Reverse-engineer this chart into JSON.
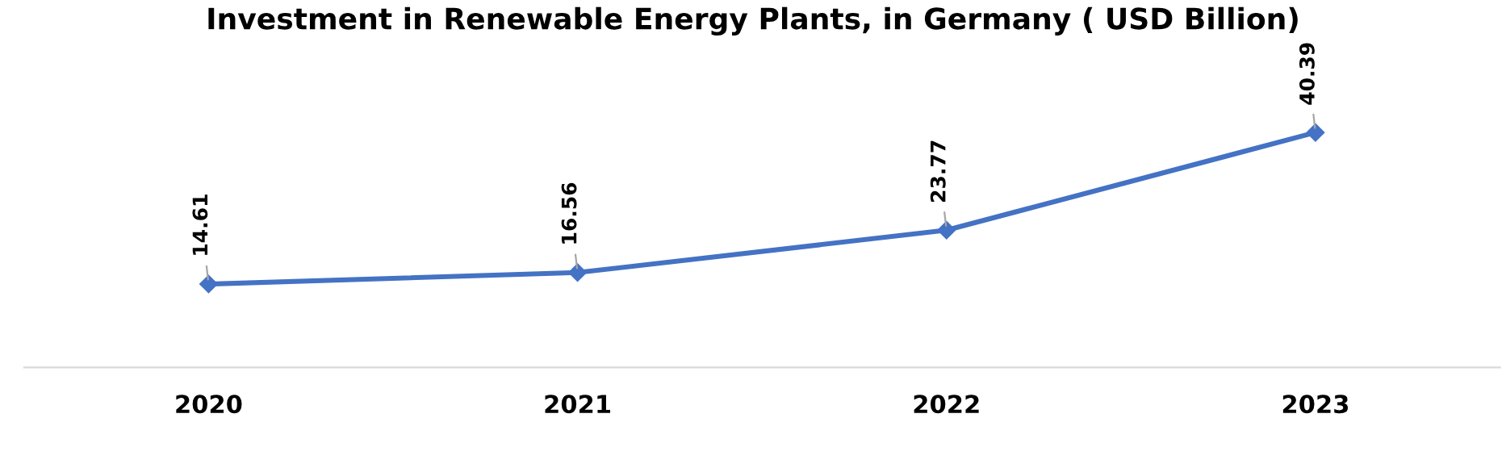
{
  "chart_data": {
    "type": "line",
    "title": "Investment in Renewable Energy Plants, in Germany ( USD Billion)",
    "categories": [
      "2020",
      "2021",
      "2022",
      "2023"
    ],
    "series": [
      {
        "color": "#4472c4",
        "values": [
          14.61,
          16.56,
          23.77,
          40.39
        ]
      }
    ],
    "tick_labels": "x",
    "data_labels": true,
    "marker": "diamond",
    "line_style": "solid"
  }
}
